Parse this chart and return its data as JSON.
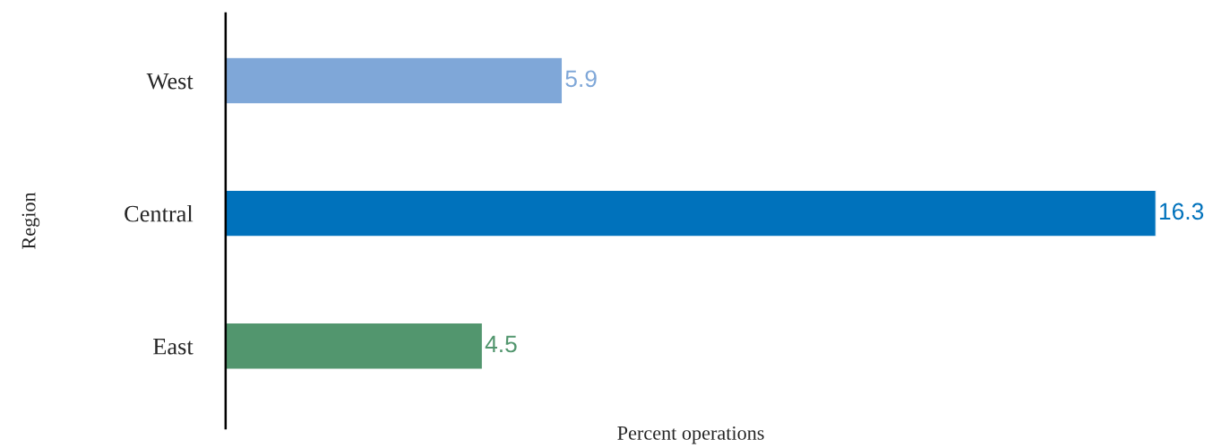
{
  "chart_data": {
    "type": "bar",
    "orientation": "horizontal",
    "xlabel": "Percent operations",
    "ylabel": "Region",
    "categories": [
      "West",
      "Central",
      "East"
    ],
    "values": [
      5.9,
      16.3,
      4.5
    ],
    "colors": [
      "#7fa7d8",
      "#0072bc",
      "#52966e"
    ],
    "data_labels": true,
    "grid": false,
    "legend": false,
    "tick_labels": "y"
  }
}
